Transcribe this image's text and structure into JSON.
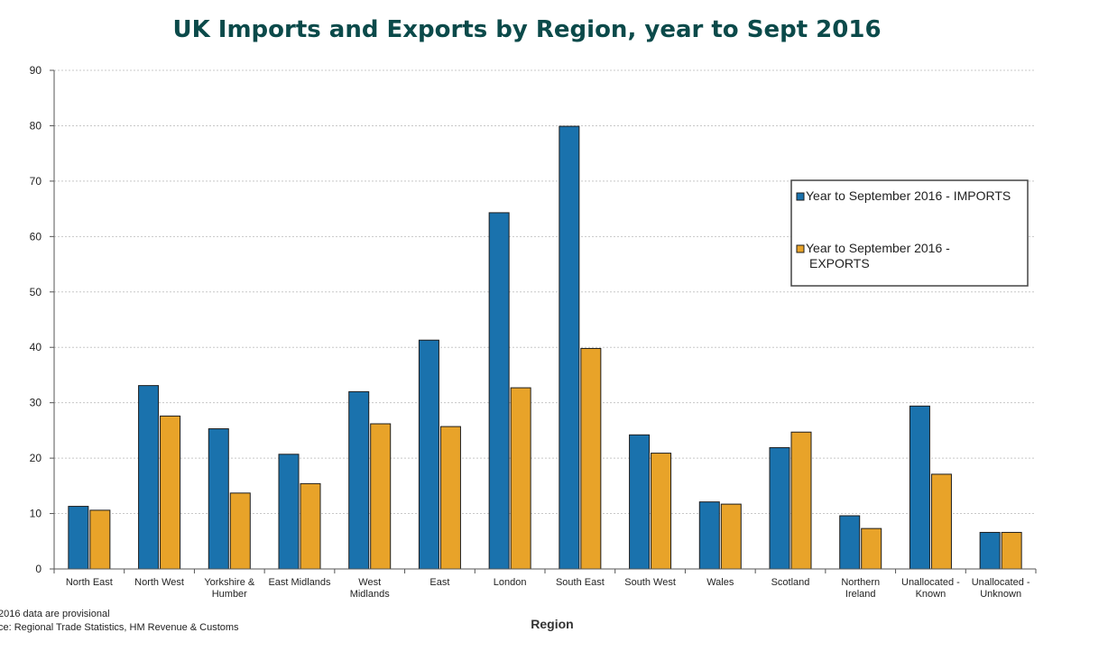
{
  "chart_data": {
    "type": "bar",
    "title": "UK Imports and Exports by Region, year to Sept 2016",
    "xlabel": "Region",
    "ylabel": "",
    "ylim": [
      0,
      90
    ],
    "yticks": [
      0,
      10,
      20,
      30,
      40,
      50,
      60,
      70,
      80,
      90
    ],
    "grid": true,
    "legend_position": "right",
    "categories": [
      [
        "North East"
      ],
      [
        "North West"
      ],
      [
        "Yorkshire &",
        "Humber"
      ],
      [
        "East Midlands"
      ],
      [
        "West",
        "Midlands"
      ],
      [
        "East"
      ],
      [
        "London"
      ],
      [
        "South East"
      ],
      [
        "South West"
      ],
      [
        "Wales"
      ],
      [
        "Scotland"
      ],
      [
        "Northern",
        "Ireland"
      ],
      [
        "Unallocated -",
        "Known"
      ],
      [
        "Unallocated -",
        "Unknown"
      ]
    ],
    "series": [
      {
        "name": "Year to September 2016 - IMPORTS",
        "legend_lines": [
          "Year to September 2016 - IMPORTS"
        ],
        "color": "#1a72ad",
        "values": [
          11.3,
          33.1,
          25.3,
          20.7,
          32.0,
          41.3,
          64.3,
          79.9,
          24.2,
          12.1,
          21.9,
          9.6,
          29.4,
          6.6
        ]
      },
      {
        "name": "Year to September 2016 - EXPORTS",
        "legend_lines": [
          "Year to September 2016 -",
          "EXPORTS"
        ],
        "color": "#e8a329",
        "values": [
          10.6,
          27.6,
          13.7,
          15.4,
          26.2,
          25.7,
          32.7,
          39.8,
          20.9,
          11.7,
          24.7,
          7.3,
          17.1,
          6.6
        ]
      }
    ],
    "footnotes": [
      "2016 data are provisional",
      "ce: Regional Trade Statistics, HM Revenue & Customs"
    ]
  }
}
